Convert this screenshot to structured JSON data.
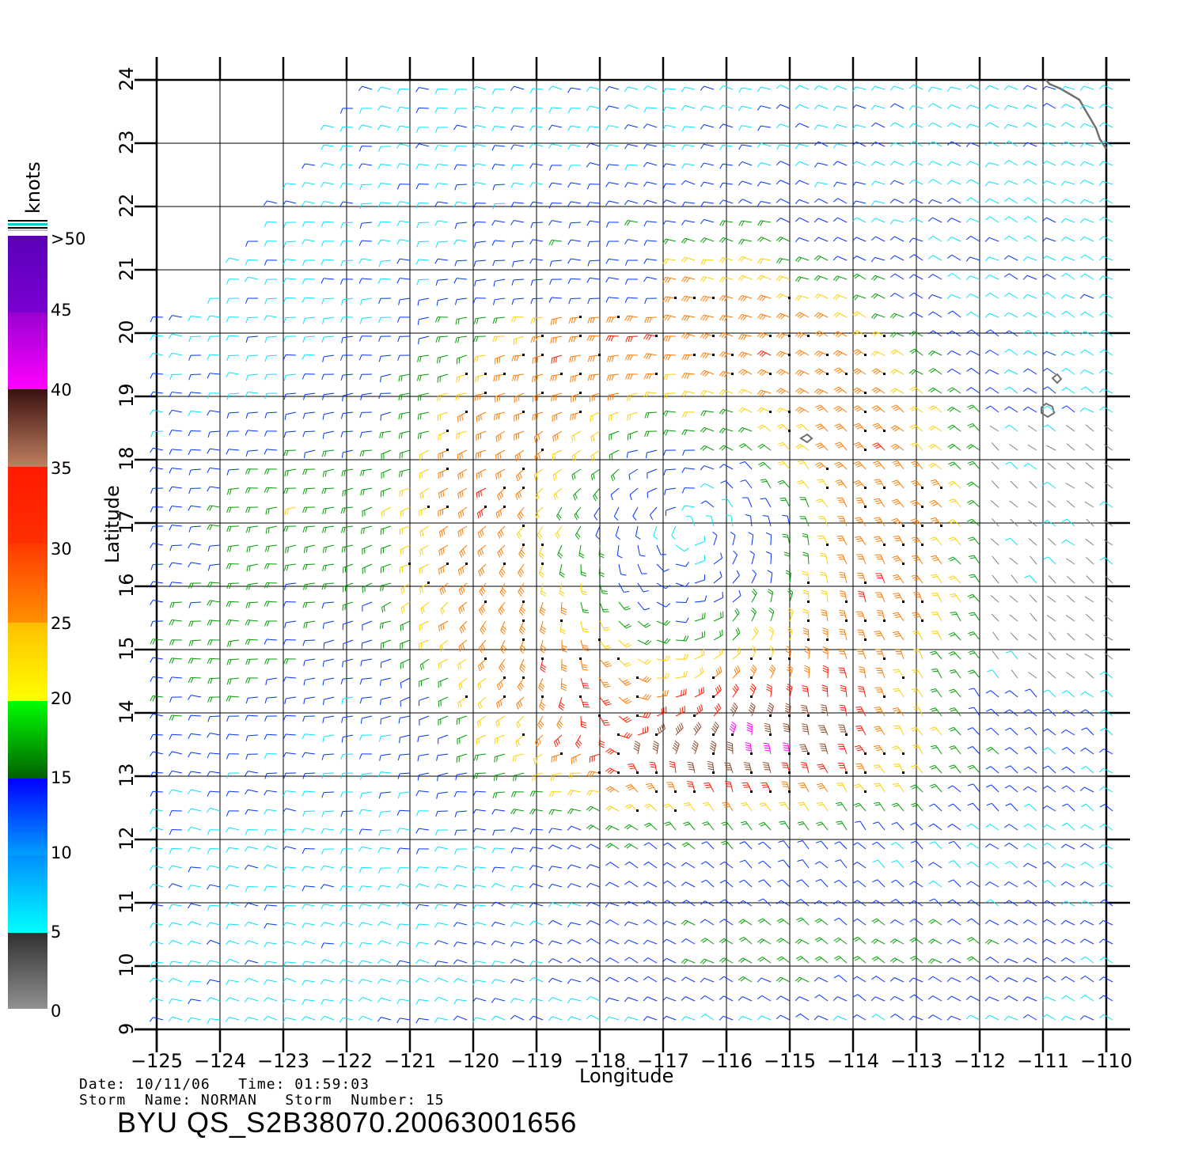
{
  "map": {
    "lon_range": [
      -125,
      -110
    ],
    "lat_range": [
      9,
      24
    ],
    "lon_ticks": [
      "-125",
      "-124",
      "-123",
      "-122",
      "-121",
      "-120",
      "-119",
      "-118",
      "-117",
      "-116",
      "-115",
      "-114",
      "-113",
      "-112",
      "-111",
      "-110"
    ],
    "lat_ticks": [
      "9",
      "10",
      "11",
      "12",
      "13",
      "14",
      "15",
      "16",
      "17",
      "18",
      "19",
      "20",
      "21",
      "22",
      "23",
      "24"
    ],
    "xlabel": "Longitude",
    "ylabel": "Latitude",
    "grid": true,
    "storm_center": {
      "lon": -116.6,
      "lat": 16.9
    }
  },
  "colorbar": {
    "unit": "knots",
    "labels": [
      ">50",
      "45",
      "40",
      "35",
      "30",
      "25",
      "20",
      "15",
      "10",
      "5",
      "0"
    ],
    "colors": {
      "calm": "#808080",
      "low": "#00e5ff",
      "blue": "#0033ff",
      "green": "#00a000",
      "yellow": "#ffd000",
      "orange": "#ff7a00",
      "red": "#ff1a00",
      "brown": "#8b4a2b",
      "magenta": "#ff00ff",
      "purple": "#6a00c0"
    }
  },
  "info": {
    "date_line": "Date: 10/11/06   Time: 01:59:03",
    "storm_line": "Storm  Name: NORMAN   Storm  Number: 15",
    "product": "BYU  QS_S2B38070.20063001656"
  }
}
